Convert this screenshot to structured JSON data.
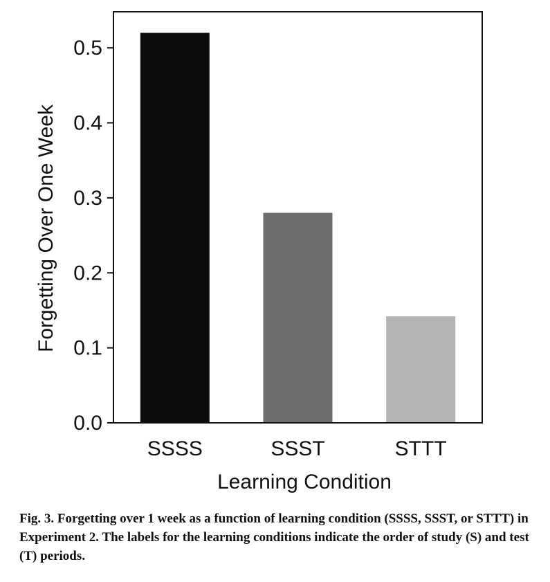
{
  "chart_data": {
    "type": "bar",
    "categories": [
      "SSSS",
      "SSST",
      "STTT"
    ],
    "values": [
      0.52,
      0.28,
      0.142
    ],
    "colors": [
      "#0c0c0c",
      "#6e6e6e",
      "#b3b3b3"
    ],
    "title": "",
    "xlabel": "Learning Condition",
    "ylabel": "Forgetting Over One Week",
    "ylim": [
      0,
      0.5481
    ],
    "yticks": [
      0.0,
      0.1,
      0.2,
      0.3,
      0.4,
      0.5
    ],
    "ytick_labels": [
      "0.0",
      "0.1",
      "0.2",
      "0.3",
      "0.4",
      "0.5"
    ],
    "grid": false,
    "legend": "none"
  },
  "caption": {
    "label": "Fig. 3.",
    "text": "Forgetting over 1 week as a function of learning condition (SSSS, SSST, or STTT) in Experiment 2. The labels for the learning conditions indicate the order of study (S) and test (T) periods."
  }
}
